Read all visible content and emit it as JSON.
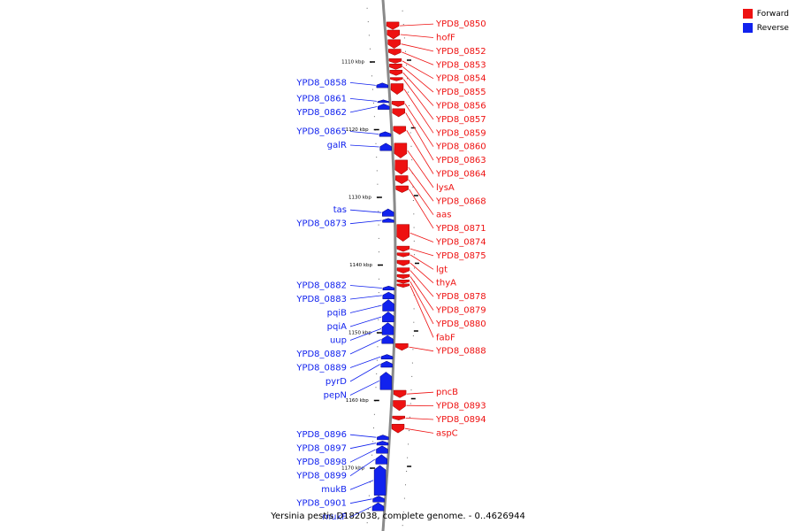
{
  "colors": {
    "forward": "#ee1111",
    "reverse": "#1122ee",
    "backbone": "#8a8a8a"
  },
  "legend": {
    "forward": "Forward",
    "reverse": "Reverse"
  },
  "caption": "Yersinia pestis D182038, complete genome. - 0..4626944",
  "kbp_ticks": [
    {
      "label": "1110 kbp",
      "kbp": 1110
    },
    {
      "label": "1120 kbp",
      "kbp": 1120
    },
    {
      "label": "1130 kbp",
      "kbp": 1130
    },
    {
      "label": "1140 kbp",
      "kbp": 1140
    },
    {
      "label": "1150 kbp",
      "kbp": 1150
    },
    {
      "label": "1160 kbp",
      "kbp": 1160
    },
    {
      "label": "1170 kbp",
      "kbp": 1170
    }
  ],
  "forward_genes": [
    {
      "name": "YPD8_0850",
      "start": 1104.1,
      "end": 1105.2
    },
    {
      "name": "hofF",
      "start": 1105.3,
      "end": 1106.6
    },
    {
      "name": "YPD8_0852",
      "start": 1106.7,
      "end": 1108.0
    },
    {
      "name": "YPD8_0853",
      "start": 1108.1,
      "end": 1109.0
    },
    {
      "name": "YPD8_0854",
      "start": 1109.5,
      "end": 1110.2
    },
    {
      "name": "YPD8_0855",
      "start": 1110.3,
      "end": 1111.1
    },
    {
      "name": "YPD8_0856",
      "start": 1111.2,
      "end": 1112.0
    },
    {
      "name": "YPD8_0857",
      "start": 1112.3,
      "end": 1112.8
    },
    {
      "name": "YPD8_0859",
      "start": 1113.2,
      "end": 1114.8
    },
    {
      "name": "YPD8_0860",
      "start": 1115.8,
      "end": 1116.6
    },
    {
      "name": "YPD8_0863",
      "start": 1116.9,
      "end": 1118.1
    },
    {
      "name": "YPD8_0864",
      "start": 1119.5,
      "end": 1120.7
    },
    {
      "name": "lysA",
      "start": 1122.0,
      "end": 1124.2
    },
    {
      "name": "YPD8_0868",
      "start": 1124.5,
      "end": 1126.6
    },
    {
      "name": "aas",
      "start": 1126.8,
      "end": 1128.0
    },
    {
      "name": "YPD8_0871",
      "start": 1128.3,
      "end": 1129.3
    },
    {
      "name": "YPD8_0874",
      "start": 1134.0,
      "end": 1136.5
    },
    {
      "name": "YPD8_0875",
      "start": 1137.2,
      "end": 1138.0
    },
    {
      "name": "lgt",
      "start": 1138.2,
      "end": 1138.8
    },
    {
      "name": "thyA",
      "start": 1139.3,
      "end": 1140.1
    },
    {
      "name": "YPD8_0878",
      "start": 1140.4,
      "end": 1141.2
    },
    {
      "name": "YPD8_0879",
      "start": 1141.4,
      "end": 1142.0
    },
    {
      "name": "YPD8_0880",
      "start": 1142.2,
      "end": 1142.7
    },
    {
      "name": "fabF",
      "start": 1142.8,
      "end": 1143.3
    },
    {
      "name": "YPD8_0888",
      "start": 1151.6,
      "end": 1152.6
    },
    {
      "name": "pncB",
      "start": 1158.5,
      "end": 1159.6
    },
    {
      "name": "YPD8_0893",
      "start": 1160.0,
      "end": 1161.5
    },
    {
      "name": "YPD8_0894",
      "start": 1162.3,
      "end": 1162.9
    },
    {
      "name": "aspC",
      "start": 1163.5,
      "end": 1164.8
    }
  ],
  "reverse_genes": [
    {
      "name": "YPD8_0858",
      "start": 1113.1,
      "end": 1113.8
    },
    {
      "name": "YPD8_0861",
      "start": 1115.6,
      "end": 1116.0
    },
    {
      "name": "YPD8_0862",
      "start": 1116.2,
      "end": 1117.0
    },
    {
      "name": "YPD8_0865",
      "start": 1120.3,
      "end": 1121.0
    },
    {
      "name": "galR",
      "start": 1122.0,
      "end": 1123.1
    },
    {
      "name": "tas",
      "start": 1131.7,
      "end": 1132.8
    },
    {
      "name": "YPD8_0873",
      "start": 1133.1,
      "end": 1133.7
    },
    {
      "name": "YPD8_0882",
      "start": 1143.1,
      "end": 1143.7
    },
    {
      "name": "YPD8_0883",
      "start": 1144.0,
      "end": 1145.0
    },
    {
      "name": "pqiB",
      "start": 1145.1,
      "end": 1146.8
    },
    {
      "name": "pqiA",
      "start": 1146.9,
      "end": 1148.4
    },
    {
      "name": "uup",
      "start": 1148.5,
      "end": 1150.3
    },
    {
      "name": "YPD8_0887",
      "start": 1150.4,
      "end": 1151.6
    },
    {
      "name": "YPD8_0889",
      "start": 1153.2,
      "end": 1153.9
    },
    {
      "name": "pyrD",
      "start": 1154.2,
      "end": 1155.1
    },
    {
      "name": "pepN",
      "start": 1155.8,
      "end": 1158.4
    },
    {
      "name": "YPD8_0896",
      "start": 1165.1,
      "end": 1165.8
    },
    {
      "name": "YPD8_0897",
      "start": 1166.0,
      "end": 1166.6
    },
    {
      "name": "YPD8_0898",
      "start": 1166.7,
      "end": 1167.8
    },
    {
      "name": "YPD8_0899",
      "start": 1168.0,
      "end": 1169.4
    },
    {
      "name": "mukB",
      "start": 1169.6,
      "end": 1174.0
    },
    {
      "name": "YPD8_0901",
      "start": 1174.1,
      "end": 1175.0
    },
    {
      "name": "mukF",
      "start": 1175.1,
      "end": 1176.3
    }
  ]
}
